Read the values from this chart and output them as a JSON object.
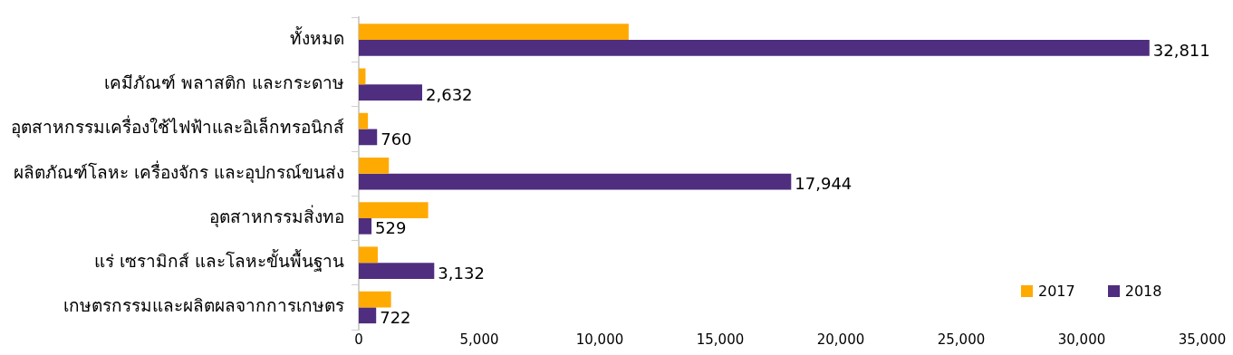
{
  "chart_data": {
    "type": "bar",
    "orientation": "horizontal",
    "categories": [
      "ทั้งหมด",
      "เคมีภัณฑ์ พลาสติก และกระดาษ",
      "อุตสาหกรรมเครื่องใช้ไฟฟ้าและอิเล็กทรอนิกส์",
      "ผลิตภัณฑ์โลหะ เครื่องจักร และอุปกรณ์ขนส่ง",
      "อุตสาหกรรมสิ่งทอ",
      "แร่ เซรามิกส์ และโลหะขั้นพื้นฐาน",
      "เกษตรกรรมและผลิตผลจากการเกษตร"
    ],
    "series": [
      {
        "name": "2017",
        "color": "#ffaa00",
        "values": [
          11200,
          280,
          380,
          1250,
          2880,
          790,
          1340
        ]
      },
      {
        "name": "2018",
        "color": "#4f2d7f",
        "values": [
          32811,
          2632,
          760,
          17944,
          529,
          3132,
          722
        ],
        "value_labels": [
          "32,811",
          "2,632",
          "760",
          "17,944",
          "529",
          "3,132",
          "722"
        ]
      }
    ],
    "xlim": [
      0,
      35000
    ],
    "xticks": [
      {
        "value": 0,
        "label": "0"
      },
      {
        "value": 5000,
        "label": "5,000"
      },
      {
        "value": 10000,
        "label": "10,000"
      },
      {
        "value": 15000,
        "label": "15,000"
      },
      {
        "value": 20000,
        "label": "20,000"
      },
      {
        "value": 25000,
        "label": "25,000"
      },
      {
        "value": 30000,
        "label": "30,000"
      },
      {
        "value": 35000,
        "label": "35,000"
      }
    ],
    "grid": false,
    "legend": "bottom right"
  }
}
